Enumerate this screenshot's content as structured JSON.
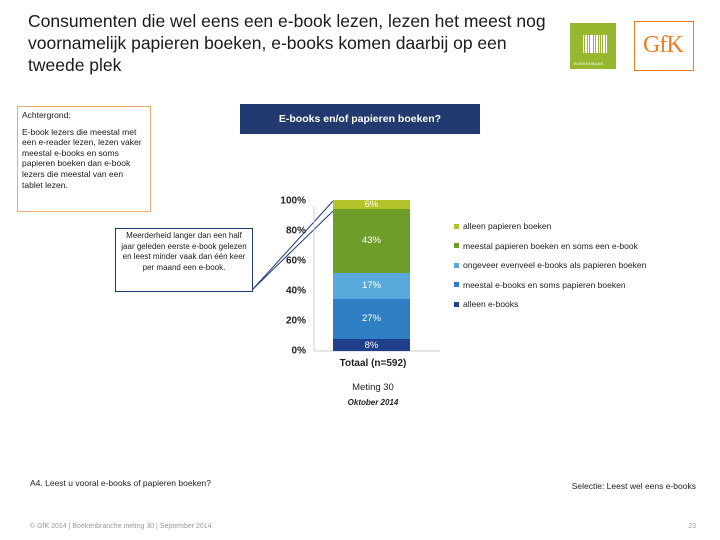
{
  "header": {
    "title": "Consumenten die wel eens een e-book lezen, lezen het meest nog voornamelijk papieren boeken, e-books komen daarbij op een tweede plek"
  },
  "logos": {
    "book_text": "BOEKENBANK",
    "gfk_text": "GfK",
    "book_color": "#97b82e",
    "gfk_color": "#f47b20"
  },
  "background_box": {
    "heading": "Achtergrond:",
    "text": "E-book lezers die meestal met een e-reader lezen, lezen vaker meestal e-books en soms papieren boeken dan e-book lezers die meestal van een tablet lezen."
  },
  "question_box": {
    "label": "E-books en/of papieren boeken?",
    "color": "#233a70"
  },
  "callout": {
    "text": "Meerderheid langer dan een half jaar geleden eerste e-book gelezen en leest minder vaak dan één keer per maand een e-book."
  },
  "chart_data": {
    "type": "bar",
    "stacked": true,
    "categories": [
      "Totaal (n=592)"
    ],
    "ylim": [
      0,
      100
    ],
    "yticks": [
      "0%",
      "20%",
      "40%",
      "60%",
      "80%",
      "100%"
    ],
    "ytick_values": [
      0,
      20,
      40,
      60,
      80,
      100
    ],
    "legend_position": "right",
    "series": [
      {
        "name": "alleen e-books",
        "values": [
          8
        ],
        "label": "8%",
        "color": "#1f3f8c"
      },
      {
        "name": "meestal e-books en soms papieren boeken",
        "values": [
          27
        ],
        "label": "27%",
        "color": "#2f7fc4"
      },
      {
        "name": "ongeveer evenveel e-books als papieren boeken",
        "values": [
          17
        ],
        "label": "17%",
        "color": "#5aa9dc"
      },
      {
        "name": "meestal papieren boeken en soms een e-book",
        "values": [
          43
        ],
        "label": "43%",
        "color": "#6e9e2a"
      },
      {
        "name": "alleen papieren boeken",
        "values": [
          6
        ],
        "label": "6%",
        "color": "#b3c42b"
      }
    ]
  },
  "legend_order": [
    "alleen papieren boeken",
    "meestal papieren boeken en soms een e-book",
    "ongeveer evenveel e-books als papieren boeken",
    "meestal e-books en soms papieren boeken",
    "alleen e-books"
  ],
  "x_axis": {
    "category_label": "Totaal (n=592)",
    "meting": "Meting 30",
    "date": "Oktober 2014"
  },
  "footnotes": {
    "question": "A4. Leest u vooral e-books of papieren boeken?",
    "selection": "Selectie: Leest wel eens e-books",
    "footer": "© GfK 2014 | Boekenbranche meting 30 | September 2014",
    "page": "23"
  }
}
